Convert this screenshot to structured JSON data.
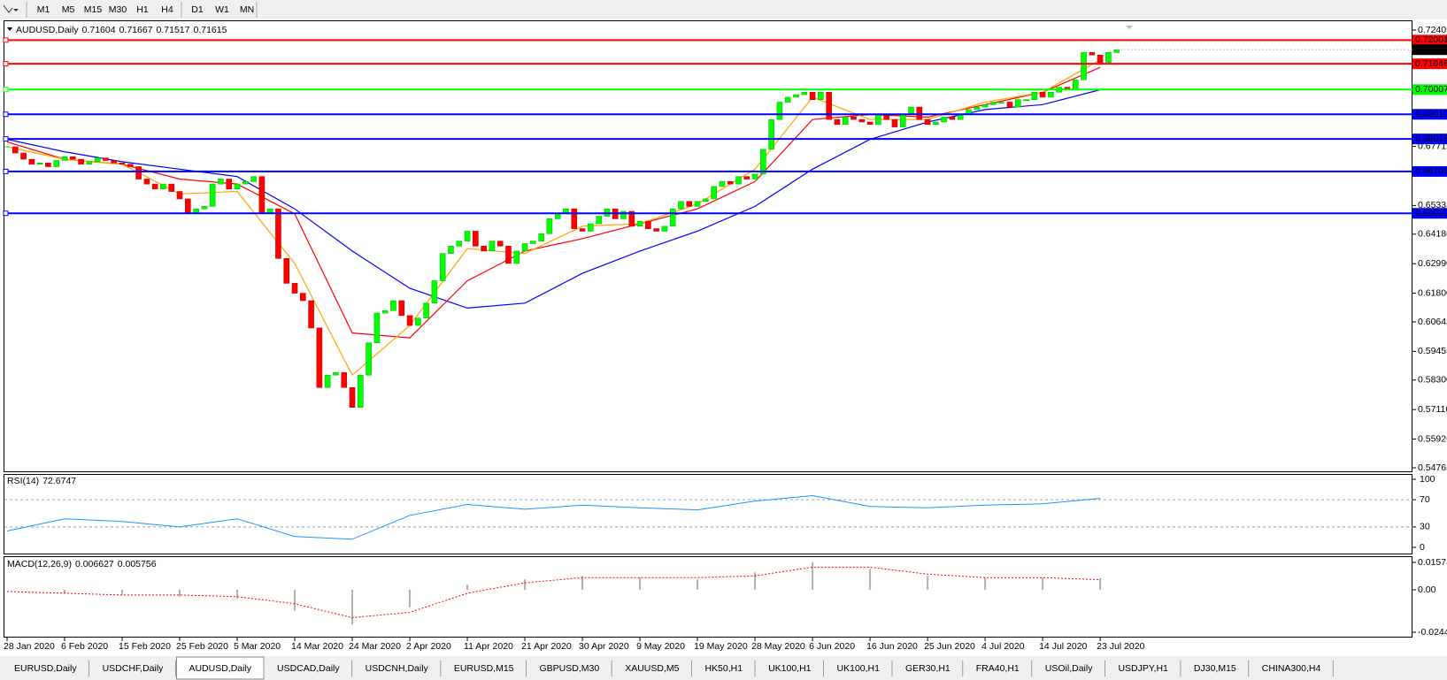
{
  "toolbar": {
    "timeframes": [
      "M1",
      "M5",
      "M15",
      "M30",
      "H1",
      "H4",
      "D1",
      "W1",
      "MN"
    ]
  },
  "chart_data": [
    {
      "type": "candlestick",
      "symbol": "AUDUSD,Daily",
      "ohlc": [
        0.71604,
        0.71667,
        0.71517,
        0.71615
      ],
      "current_price": 0.71615,
      "up_color": "#00ff00",
      "down_color": "#ff0000",
      "xlim": [
        0,
        171
      ],
      "ylim": [
        0.54765,
        0.72405
      ],
      "yticks": [
        0.72405,
        0.67715,
        0.65335,
        {
          "value": 0.6418,
          "label": "0.64180"
        },
        {
          "value": 0.6299,
          "label": "0.62990"
        },
        {
          "value": 0.618,
          "label": "0.61800"
        },
        0.60645,
        0.59455,
        {
          "value": 0.583,
          "label": "0.58300"
        },
        {
          "value": 0.5711,
          "label": "0.57110"
        },
        {
          "value": 0.5592,
          "label": "0.55920"
        },
        0.54765
      ],
      "xticks": [
        {
          "value": 0,
          "label": "28 Jan 2020"
        },
        {
          "value": 7,
          "label": "6 Feb 2020"
        },
        {
          "value": 14,
          "label": "15 Feb 2020"
        },
        {
          "value": 21,
          "label": "25 Feb 2020"
        },
        {
          "value": 28,
          "label": "5 Mar 2020"
        },
        {
          "value": 35,
          "label": "14 Mar 2020"
        },
        {
          "value": 42,
          "label": "24 Mar 2020"
        },
        {
          "value": 49,
          "label": "2 Apr 2020"
        },
        {
          "value": 56,
          "label": "11 Apr 2020"
        },
        {
          "value": 63,
          "label": "21 Apr 2020"
        },
        {
          "value": 70,
          "label": "30 Apr 2020"
        },
        {
          "value": 77,
          "label": "9 May 2020"
        },
        {
          "value": 84,
          "label": "19 May 2020"
        },
        {
          "value": 91,
          "label": "28 May 2020"
        },
        {
          "value": 98,
          "label": "6 Jun 2020"
        },
        {
          "value": 105,
          "label": "16 Jun 2020"
        },
        {
          "value": 112,
          "label": "25 Jun 2020"
        },
        {
          "value": 119,
          "label": "4 Jul 2020"
        },
        {
          "value": 126,
          "label": "14 Jul 2020"
        },
        {
          "value": 133,
          "label": "23 Jul 2020"
        }
      ],
      "levels": [
        {
          "value": 0.72001,
          "color": "#ff0000"
        },
        {
          "value": 0.71046,
          "color": "#ff0000"
        },
        {
          "value": 0.70007,
          "color": "#00ff00"
        },
        {
          "value": 0.6901,
          "label": "0.69010",
          "color": "#0000ff"
        },
        {
          "value": 0.68017,
          "color": "#0000ff"
        },
        {
          "value": 0.66706,
          "color": "#0000ff"
        },
        {
          "value": 0.6502,
          "label": "0.65020",
          "color": "#0000ff"
        }
      ],
      "closes": [
        0.677,
        0.6745,
        0.672,
        0.67,
        0.6705,
        0.669,
        0.6715,
        0.673,
        0.672,
        0.67,
        0.671,
        0.6725,
        0.6715,
        0.6705,
        0.67,
        0.669,
        0.664,
        0.662,
        0.66,
        0.662,
        0.659,
        0.656,
        0.65,
        0.652,
        0.653,
        0.662,
        0.664,
        0.66,
        0.662,
        0.663,
        0.665,
        0.65,
        0.652,
        0.632,
        0.622,
        0.618,
        0.615,
        0.604,
        0.58,
        0.585,
        0.586,
        0.58,
        0.572,
        0.585,
        0.598,
        0.61,
        0.611,
        0.615,
        0.609,
        0.605,
        0.608,
        0.614,
        0.623,
        0.634,
        0.637,
        0.639,
        0.643,
        0.637,
        0.635,
        0.639,
        0.637,
        0.63,
        0.635,
        0.638,
        0.639,
        0.642,
        0.648,
        0.65,
        0.652,
        0.644,
        0.643,
        0.646,
        0.649,
        0.652,
        0.648,
        0.651,
        0.645,
        0.647,
        0.644,
        0.643,
        0.645,
        0.652,
        0.655,
        0.653,
        0.655,
        0.656,
        0.661,
        0.663,
        0.662,
        0.665,
        0.664,
        0.666,
        0.676,
        0.688,
        0.695,
        0.697,
        0.698,
        0.699,
        0.696,
        0.699,
        0.688,
        0.686,
        0.689,
        0.688,
        0.687,
        0.686,
        0.69,
        0.688,
        0.685,
        0.69,
        0.693,
        0.688,
        0.686,
        0.687,
        0.689,
        0.688,
        0.69,
        0.692,
        0.693,
        0.694,
        0.695,
        0.695,
        0.693,
        0.696,
        0.696,
        0.699,
        0.697,
        0.699,
        0.701,
        0.7,
        0.704,
        0.715,
        0.714,
        0.711,
        0.715,
        0.7161
      ],
      "ma_x": [
        0,
        7,
        14,
        21,
        28,
        35,
        42,
        49,
        56,
        63,
        70,
        77,
        84,
        91,
        98,
        105,
        112,
        119,
        126,
        133
      ],
      "moving_averages": [
        {
          "color": "#0000ff",
          "values": [
            0.68,
            0.675,
            0.671,
            0.668,
            0.665,
            0.652,
            0.635,
            0.62,
            0.612,
            0.614,
            0.626,
            0.635,
            0.643,
            0.653,
            0.668,
            0.68,
            0.687,
            0.692,
            0.694,
            0.7
          ]
        },
        {
          "color": "#ff0000",
          "values": [
            0.679,
            0.672,
            0.67,
            0.664,
            0.662,
            0.65,
            0.602,
            0.6,
            0.623,
            0.635,
            0.64,
            0.646,
            0.652,
            0.663,
            0.688,
            0.69,
            0.689,
            0.694,
            0.699,
            0.709
          ]
        },
        {
          "color": "#ffa500",
          "values": [
            0.677,
            0.672,
            0.67,
            0.658,
            0.659,
            0.63,
            0.585,
            0.605,
            0.636,
            0.634,
            0.645,
            0.646,
            0.654,
            0.668,
            0.697,
            0.688,
            0.688,
            0.695,
            0.699,
            0.712
          ]
        }
      ]
    },
    {
      "type": "line",
      "title": "RSI(14)",
      "value": 72.6747,
      "color": "#1e90ff",
      "xlim": [
        0,
        171
      ],
      "ylim": [
        0,
        100
      ],
      "yticks": [
        100,
        70,
        30,
        0
      ],
      "x": [
        0,
        7,
        14,
        21,
        28,
        35,
        42,
        49,
        56,
        63,
        70,
        77,
        84,
        91,
        98,
        105,
        112,
        119,
        126,
        133
      ],
      "values": [
        24,
        42,
        38,
        30,
        42,
        16,
        12,
        47,
        63,
        56,
        62,
        58,
        55,
        68,
        76,
        60,
        58,
        62,
        64,
        72
      ]
    },
    {
      "type": "macd",
      "title": "MACD(12,26,9)",
      "main": 0.006627,
      "signal": 0.005756,
      "xlim": [
        0,
        171
      ],
      "ylim": [
        -0.02441,
        0.01574
      ],
      "yticks": [
        0.01574,
        {
          "value": 0,
          "label": "0.00"
        },
        -0.02441
      ],
      "x": [
        0,
        7,
        14,
        21,
        28,
        35,
        42,
        49,
        56,
        63,
        70,
        77,
        84,
        91,
        98,
        105,
        112,
        119,
        126,
        133
      ],
      "series": [
        {
          "kind": "histogram",
          "color": "#b0b0b0",
          "values": [
            0.0,
            -0.002,
            -0.003,
            -0.004,
            -0.005,
            -0.012,
            -0.02,
            -0.01,
            0.003,
            0.006,
            0.008,
            0.007,
            0.006,
            0.01,
            0.016,
            0.012,
            0.008,
            0.007,
            0.007,
            0.0066
          ]
        },
        {
          "kind": "line",
          "color": "#ff0000",
          "values": [
            -0.001,
            -0.002,
            -0.003,
            -0.003,
            -0.004,
            -0.008,
            -0.016,
            -0.013,
            -0.002,
            0.004,
            0.007,
            0.007,
            0.007,
            0.008,
            0.013,
            0.013,
            0.009,
            0.007,
            0.007,
            0.0058
          ]
        }
      ]
    }
  ],
  "tabs": [
    "EURUSD,Daily",
    "USDCHF,Daily",
    "AUDUSD,Daily",
    "USDCAD,Daily",
    "USDCNH,Daily",
    "EURUSD,M15",
    "GBPUSD,M30",
    "XAUUSD,M5",
    "HK50,H1",
    "UK100,H1",
    "UK100,H1",
    "GER30,H1",
    "FRA40,H1",
    "USOil,Daily",
    "USDJPY,H1",
    "DJ30,M15",
    "CHINA300,H4"
  ],
  "active_tab": 2
}
